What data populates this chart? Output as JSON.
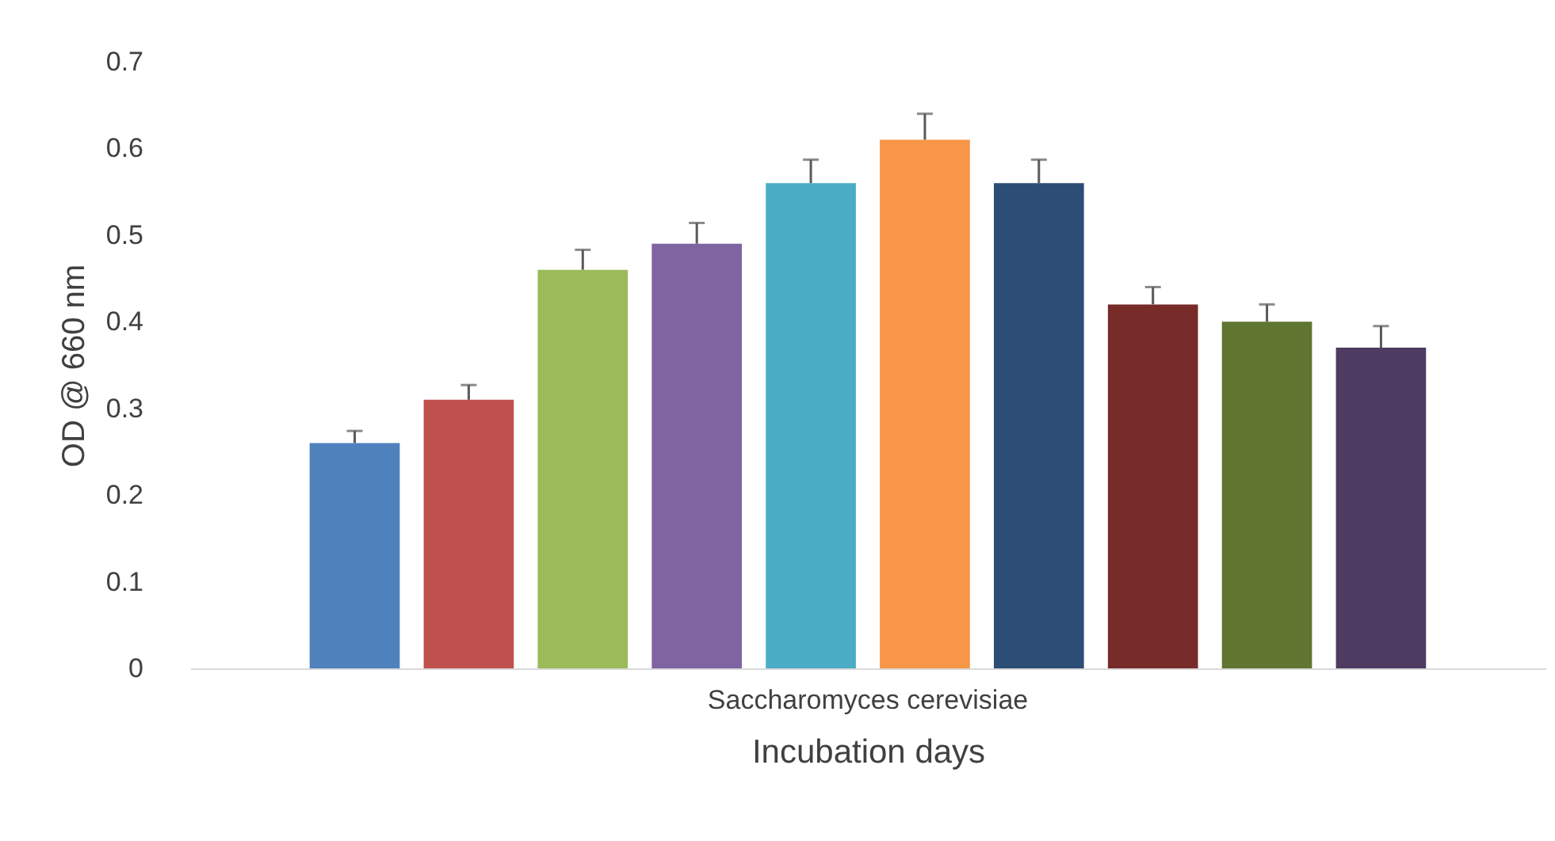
{
  "chart_data": {
    "type": "bar",
    "xlabel": "Incubation days",
    "ylabel": "OD @ 660 nm",
    "categories": [
      "Saccharomyces cerevisiae"
    ],
    "ylim": [
      0,
      0.7
    ],
    "yticks": [
      0,
      0.1,
      0.2,
      0.3,
      0.4,
      0.5,
      0.6,
      0.7
    ],
    "series": [
      {
        "color": "#4f81bd",
        "values": [
          0.26
        ],
        "errors": [
          [
            0.26,
            0.274
          ]
        ]
      },
      {
        "color": "#c0504d",
        "values": [
          0.31
        ],
        "errors": [
          [
            0.31,
            0.327
          ]
        ]
      },
      {
        "color": "#9bbb59",
        "values": [
          0.46
        ],
        "errors": [
          [
            0.46,
            0.483
          ]
        ]
      },
      {
        "color": "#8064a2",
        "values": [
          0.49
        ],
        "errors": [
          [
            0.49,
            0.514
          ]
        ]
      },
      {
        "color": "#4bacc6",
        "values": [
          0.56
        ],
        "errors": [
          [
            0.56,
            0.587
          ]
        ]
      },
      {
        "color": "#f79646",
        "values": [
          0.61
        ],
        "errors": [
          [
            0.61,
            0.64
          ]
        ]
      },
      {
        "color": "#2c4d75",
        "values": [
          0.56
        ],
        "errors": [
          [
            0.56,
            0.587
          ]
        ]
      },
      {
        "color": "#772c2a",
        "values": [
          0.42
        ],
        "errors": [
          [
            0.42,
            0.44
          ]
        ]
      },
      {
        "color": "#5f7530",
        "values": [
          0.4
        ],
        "errors": [
          [
            0.4,
            0.42
          ]
        ]
      },
      {
        "color": "#4d3b62",
        "values": [
          0.37
        ],
        "errors": [
          [
            0.37,
            0.395
          ]
        ]
      }
    ]
  }
}
